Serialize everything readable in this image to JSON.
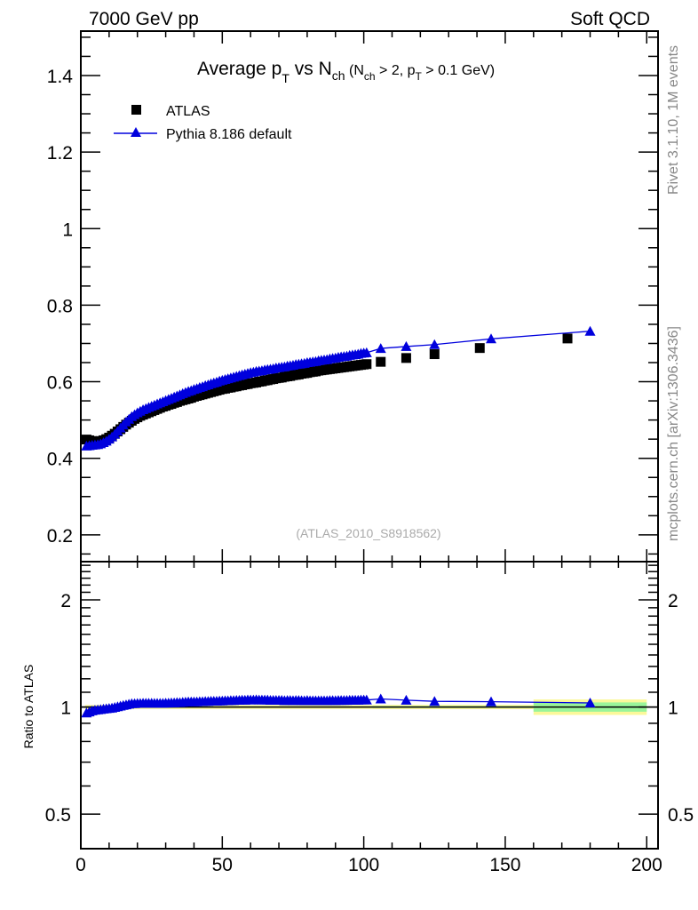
{
  "chart_data": {
    "type": "scatter",
    "header_left": "7000 GeV pp",
    "header_right": "Soft QCD",
    "title_parts": [
      "Average p",
      "T",
      " vs N",
      "ch",
      " (N",
      "ch",
      " > 2, p",
      "T",
      " > 0.1 GeV)"
    ],
    "watermark": "(ATLAS_2010_S8918562)",
    "side_text_top": "Rivet 3.1.10,  1M events",
    "side_text_bottom": "mcplots.cern.ch [arXiv:1306.3436]",
    "ratio_ylabel": "Ratio to ATLAS",
    "xlabel": "",
    "xlim": [
      0,
      204
    ],
    "ylim": [
      0.13,
      1.516
    ],
    "ratio_ylim": [
      0.4,
      2.56
    ],
    "ratio_scale": "log",
    "x_ticks": [
      "0",
      "50",
      "100",
      "150",
      "200"
    ],
    "y_ticks": [
      "0.2",
      "0.4",
      "0.6",
      "0.8",
      "1",
      "1.2",
      "1.4"
    ],
    "ratio_y_ticks": [
      "0.5",
      "1",
      "2"
    ],
    "legend_position": "top-left",
    "colors": {
      "data": "#000000",
      "mc": "#0000dd",
      "band_total": "#fbf89a",
      "band_stat": "#9af59a"
    },
    "series": [
      {
        "name": "ATLAS",
        "marker": "square",
        "x": [
          2,
          3,
          4,
          5,
          6,
          7,
          8,
          9,
          10,
          11,
          12,
          13,
          14,
          15,
          16,
          17,
          18,
          19,
          20,
          21,
          22,
          23,
          24,
          25,
          26,
          27,
          28,
          29,
          30,
          31,
          32,
          33,
          34,
          35,
          36,
          37,
          38,
          39,
          40,
          41,
          42,
          43,
          44,
          45,
          46,
          47,
          48,
          49,
          50,
          51,
          52,
          53,
          54,
          55,
          56,
          57,
          58,
          59,
          60,
          61,
          62,
          63,
          64,
          65,
          66,
          67,
          68,
          69,
          70,
          71,
          72,
          73,
          74,
          75,
          76,
          77,
          78,
          79,
          80,
          81,
          82,
          83,
          84,
          85,
          86,
          87,
          88,
          89,
          90,
          91,
          92,
          93,
          94,
          95,
          96,
          97,
          98,
          99,
          100,
          101,
          106,
          115,
          125,
          141,
          172
        ],
        "y": [
          0.449,
          0.447,
          0.445,
          0.444,
          0.444,
          0.445,
          0.447,
          0.45,
          0.454,
          0.459,
          0.464,
          0.47,
          0.476,
          0.482,
          0.488,
          0.493,
          0.498,
          0.503,
          0.507,
          0.511,
          0.514,
          0.517,
          0.52,
          0.523,
          0.526,
          0.529,
          0.532,
          0.535,
          0.537,
          0.54,
          0.542,
          0.545,
          0.547,
          0.55,
          0.552,
          0.554,
          0.556,
          0.558,
          0.561,
          0.563,
          0.565,
          0.567,
          0.569,
          0.571,
          0.573,
          0.575,
          0.577,
          0.579,
          0.581,
          0.582,
          0.584,
          0.585,
          0.587,
          0.588,
          0.59,
          0.591,
          0.593,
          0.594,
          0.596,
          0.597,
          0.598,
          0.6,
          0.601,
          0.603,
          0.604,
          0.606,
          0.607,
          0.609,
          0.61,
          0.611,
          0.613,
          0.614,
          0.615,
          0.617,
          0.618,
          0.619,
          0.621,
          0.622,
          0.623,
          0.625,
          0.626,
          0.627,
          0.629,
          0.63,
          0.631,
          0.632,
          0.633,
          0.634,
          0.635,
          0.636,
          0.637,
          0.638,
          0.639,
          0.64,
          0.641,
          0.642,
          0.643,
          0.644,
          0.645,
          0.646,
          0.652,
          0.662,
          0.672,
          0.688,
          0.713
        ]
      },
      {
        "name": "Pythia 8.186 default",
        "marker": "triangle",
        "x": [
          2,
          3,
          4,
          5,
          6,
          7,
          8,
          9,
          10,
          11,
          12,
          13,
          14,
          15,
          16,
          17,
          18,
          19,
          20,
          21,
          22,
          23,
          24,
          25,
          26,
          27,
          28,
          29,
          30,
          31,
          32,
          33,
          34,
          35,
          36,
          37,
          38,
          39,
          40,
          41,
          42,
          43,
          44,
          45,
          46,
          47,
          48,
          49,
          50,
          51,
          52,
          53,
          54,
          55,
          56,
          57,
          58,
          59,
          60,
          61,
          62,
          63,
          64,
          65,
          66,
          67,
          68,
          69,
          70,
          71,
          72,
          73,
          74,
          75,
          76,
          77,
          78,
          79,
          80,
          81,
          82,
          83,
          84,
          85,
          86,
          87,
          88,
          89,
          90,
          91,
          92,
          93,
          94,
          95,
          96,
          97,
          98,
          99,
          100,
          101,
          106,
          115,
          125,
          145,
          180
        ],
        "y": [
          0.432,
          0.433,
          0.434,
          0.435,
          0.436,
          0.438,
          0.441,
          0.445,
          0.45,
          0.456,
          0.463,
          0.471,
          0.479,
          0.487,
          0.495,
          0.502,
          0.509,
          0.514,
          0.519,
          0.523,
          0.527,
          0.53,
          0.533,
          0.536,
          0.539,
          0.542,
          0.545,
          0.548,
          0.551,
          0.554,
          0.557,
          0.56,
          0.563,
          0.566,
          0.569,
          0.572,
          0.575,
          0.577,
          0.58,
          0.582,
          0.585,
          0.587,
          0.59,
          0.592,
          0.595,
          0.597,
          0.599,
          0.602,
          0.604,
          0.606,
          0.608,
          0.61,
          0.612,
          0.614,
          0.616,
          0.618,
          0.62,
          0.622,
          0.624,
          0.625,
          0.627,
          0.628,
          0.629,
          0.631,
          0.632,
          0.633,
          0.634,
          0.636,
          0.637,
          0.638,
          0.639,
          0.641,
          0.642,
          0.643,
          0.645,
          0.646,
          0.647,
          0.648,
          0.65,
          0.651,
          0.652,
          0.653,
          0.655,
          0.656,
          0.657,
          0.658,
          0.66,
          0.661,
          0.662,
          0.664,
          0.665,
          0.666,
          0.667,
          0.669,
          0.67,
          0.671,
          0.672,
          0.674,
          0.675,
          0.676,
          0.687,
          0.692,
          0.697,
          0.712,
          0.732
        ]
      }
    ],
    "ratio_bands": [
      {
        "xlo": 1.5,
        "xhi": 103,
        "stat": 0.004,
        "total": 0.013
      },
      {
        "xlo": 103,
        "xhi": 160,
        "stat": 0.006,
        "total": 0.014
      },
      {
        "xlo": 160,
        "xhi": 200,
        "stat": 0.03,
        "total": 0.05
      }
    ]
  }
}
